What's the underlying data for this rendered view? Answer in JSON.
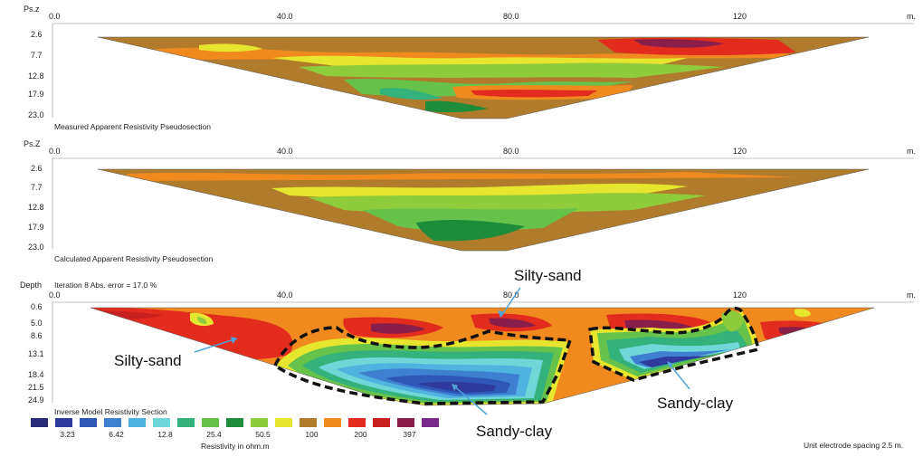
{
  "chart_data": [
    {
      "type": "heatmap",
      "name": "measured",
      "y_axis_label": "Ps.z",
      "x_ticks": [
        "0.0",
        "40.0",
        "80.0",
        "120"
      ],
      "x_unit": "m.",
      "y_ticks": [
        "2.6",
        "7.7",
        "12.8",
        "17.9",
        "23.0"
      ],
      "caption": "Measured Apparent Resistivity Pseudosection",
      "x_range": [
        0,
        150
      ],
      "y_range": [
        0,
        23
      ]
    },
    {
      "type": "heatmap",
      "name": "calculated",
      "y_axis_label": "Ps.Z",
      "x_ticks": [
        "0.0",
        "40.0",
        "80.0",
        "120"
      ],
      "x_unit": "m.",
      "y_ticks": [
        "2.6",
        "7.7",
        "12.8",
        "17.9",
        "23.0"
      ],
      "caption": "Calculated Apparent Resistivity Pseudosection",
      "x_range": [
        0,
        150
      ],
      "y_range": [
        0,
        23
      ]
    },
    {
      "type": "heatmap",
      "name": "inverse",
      "y_axis_label": "Depth",
      "iteration_text": "Iteration 8 Abs. error = 17.0 %",
      "x_ticks": [
        "0.0",
        "40.0",
        "80.0",
        "120"
      ],
      "x_unit": "m.",
      "y_ticks": [
        "0.6",
        "5.0",
        "8.6",
        "13.1",
        "18.4",
        "21.5",
        "24.9"
      ],
      "caption": "Inverse Model Resistivity Section",
      "x_range": [
        0,
        150
      ],
      "y_range": [
        0,
        24.9
      ],
      "annotations": [
        {
          "label": "Silty-sand",
          "x": 32,
          "depth": 8
        },
        {
          "label": "Silty-sand",
          "x": 78,
          "depth": 2
        },
        {
          "label": "Sandy-clay",
          "x": 72,
          "depth": 18
        },
        {
          "label": "Sandy-clay",
          "x": 115,
          "depth": 16
        }
      ]
    }
  ],
  "legend": {
    "title": "Resistivity in ohm.m",
    "colors": [
      "#2a2a7a",
      "#2e3a9c",
      "#2f57b8",
      "#3f7fd0",
      "#4fb3e0",
      "#6fd7d8",
      "#33b27b",
      "#66c24a",
      "#1e8c3a",
      "#8fcc3c",
      "#e6e62e",
      "#b07c2c",
      "#f08a1e",
      "#e32b1e",
      "#c8201e",
      "#8a1e4a",
      "#7a2a8a"
    ],
    "tick_labels": [
      "3.23",
      "6.42",
      "12.8",
      "25.4",
      "50.5",
      "100",
      "200",
      "397"
    ]
  },
  "footer": {
    "spacing_text": "Unit electrode spacing 2.5 m."
  }
}
